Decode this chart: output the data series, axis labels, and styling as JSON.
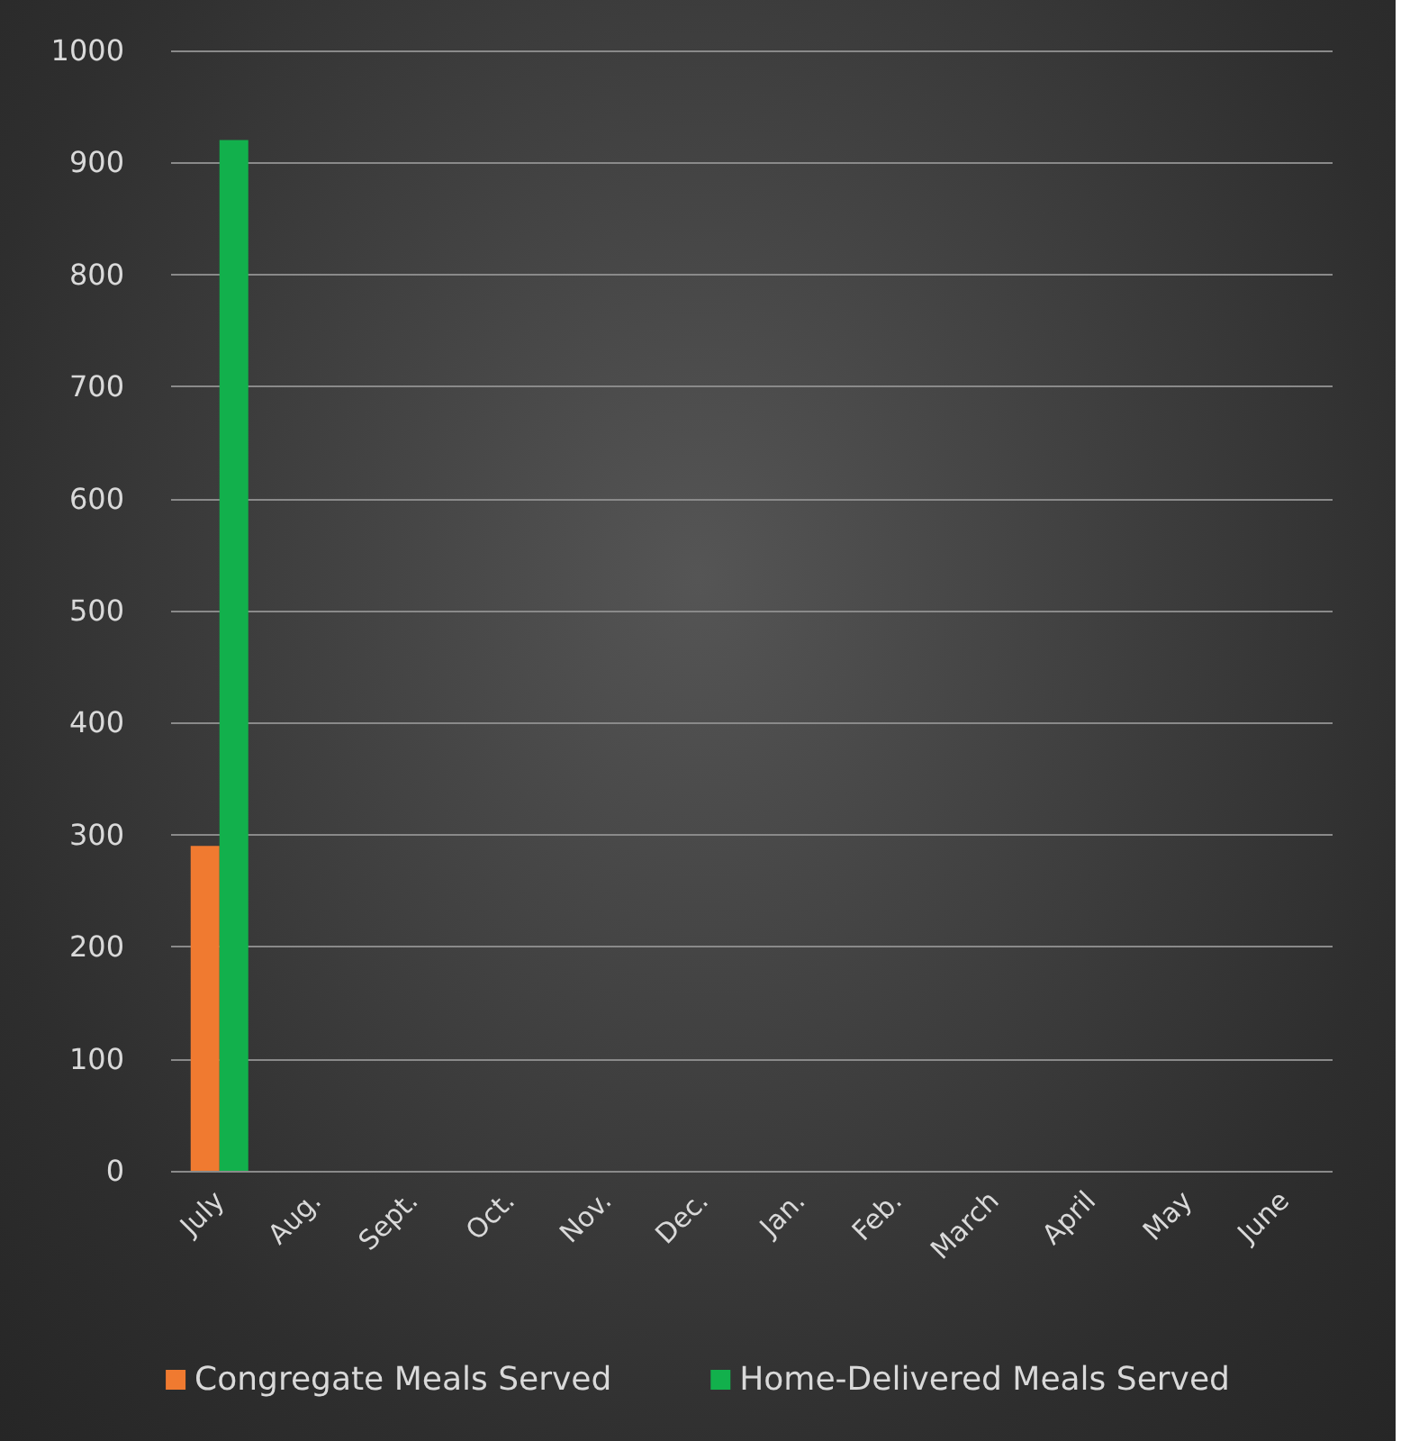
{
  "chart_data": {
    "type": "bar",
    "categories": [
      "July",
      "Aug.",
      "Sept.",
      "Oct.",
      "Nov.",
      "Dec.",
      "Jan.",
      "Feb.",
      "March",
      "April",
      "May",
      "June"
    ],
    "series": [
      {
        "name": "Congregate Meals Served",
        "color": "#f07a30",
        "values": [
          290,
          null,
          null,
          null,
          null,
          null,
          null,
          null,
          null,
          null,
          null,
          null
        ]
      },
      {
        "name": "Home-Delivered Meals Served",
        "color": "#12b04c",
        "values": [
          920,
          null,
          null,
          null,
          null,
          null,
          null,
          null,
          null,
          null,
          null,
          null
        ]
      }
    ],
    "ylim": [
      0,
      1000
    ],
    "yticks": [
      0,
      100,
      200,
      300,
      400,
      500,
      600,
      700,
      800,
      900,
      1000
    ],
    "grid": "y",
    "legend": "bottom"
  }
}
